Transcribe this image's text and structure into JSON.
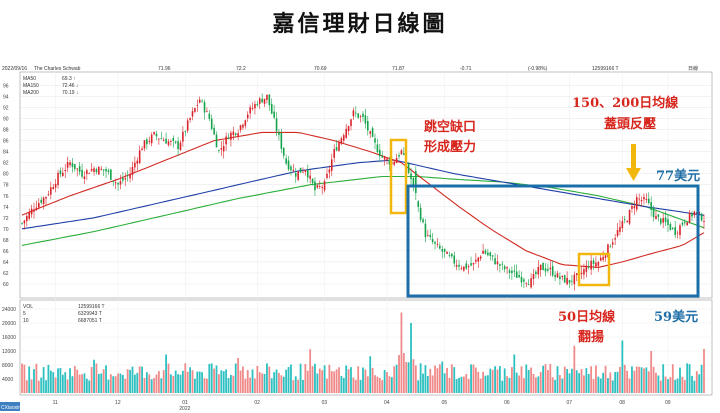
{
  "title": "嘉信理財日線圖",
  "header": {
    "date": "2022/09/16",
    "symbol": "The Charles Schwab",
    "fields": [
      "71.96",
      "72.2",
      "70.69",
      "71.87",
      "-0.71",
      "(-0.98%)",
      "12599166 T",
      "日線"
    ],
    "index_markers": [
      "開",
      "高",
      "低",
      "收",
      "量"
    ]
  },
  "ma_legend": [
    {
      "label": "MA50",
      "value": "69.3 ↑",
      "color": "#d12a22"
    },
    {
      "label": "MA150",
      "value": "72.46 ↓",
      "color": "#1f3fa8"
    },
    {
      "label": "MA200",
      "value": "70.19 ↓",
      "color": "#2bae3a"
    }
  ],
  "vol_legend": [
    {
      "label": "VOL",
      "value": "12599166 T"
    },
    {
      "label": "5",
      "value": "6329943 T"
    },
    {
      "label": "10",
      "value": "6687051 T"
    }
  ],
  "status_tag": "CXiaoxin",
  "annotations": {
    "gap": [
      "跳空缺口",
      "形成壓力"
    ],
    "ma_resist": [
      "150、200日均線",
      "蓋頭反壓"
    ],
    "price77": "77美元",
    "ma50_up": [
      "50日均線",
      "翻揚"
    ],
    "price59": "59美元"
  },
  "colors": {
    "up": "#d9232a",
    "down": "#14a34a",
    "vol_up": "#f08a8a",
    "vol_down": "#2cc0c0",
    "ma50": "#d12a22",
    "ma150": "#1f3fa8",
    "ma200": "#2bae3a",
    "box": "#1b6fa8",
    "highlight": "#f2b70f"
  },
  "chart_data": {
    "type": "candlestick",
    "yticks": [
      60,
      62,
      64,
      66,
      68,
      70,
      72,
      74,
      76,
      78,
      80,
      82,
      84,
      86,
      88,
      90,
      92,
      94,
      96
    ],
    "vol_ticks": [
      4000,
      8000,
      12000,
      16000,
      20000,
      24000
    ],
    "x_labels": [
      "11",
      "12",
      "01",
      "02",
      "03",
      "04",
      "05",
      "06",
      "07",
      "08",
      "09"
    ],
    "x_year": "2022",
    "ylim": [
      58,
      97
    ],
    "price_path": [
      [
        0,
        71
      ],
      [
        5,
        74
      ],
      [
        10,
        76
      ],
      [
        15,
        79.5
      ],
      [
        20,
        82
      ],
      [
        25,
        80
      ],
      [
        30,
        81
      ],
      [
        35,
        80.5
      ],
      [
        40,
        78
      ],
      [
        45,
        80
      ],
      [
        50,
        85
      ],
      [
        55,
        87
      ],
      [
        60,
        86
      ],
      [
        65,
        85
      ],
      [
        70,
        90
      ],
      [
        74,
        93.5
      ],
      [
        78,
        90
      ],
      [
        82,
        84
      ],
      [
        86,
        87
      ],
      [
        90,
        88
      ],
      [
        94,
        91
      ],
      [
        98,
        93
      ],
      [
        102,
        94
      ],
      [
        106,
        88
      ],
      [
        110,
        82
      ],
      [
        114,
        80
      ],
      [
        118,
        81
      ],
      [
        122,
        77
      ],
      [
        126,
        78
      ],
      [
        130,
        84
      ],
      [
        134,
        87.5
      ],
      [
        138,
        91
      ],
      [
        142,
        90
      ],
      [
        146,
        86
      ],
      [
        150,
        83
      ],
      [
        154,
        82
      ],
      [
        158,
        84
      ],
      [
        162,
        79
      ],
      [
        165,
        74
      ],
      [
        168,
        69
      ],
      [
        172,
        67
      ],
      [
        176,
        65.5
      ],
      [
        180,
        64
      ],
      [
        184,
        63
      ],
      [
        188,
        63.5
      ],
      [
        192,
        66
      ],
      [
        196,
        64.5
      ],
      [
        200,
        63
      ],
      [
        204,
        62
      ],
      [
        208,
        61
      ],
      [
        212,
        60.5
      ],
      [
        216,
        63
      ],
      [
        220,
        62.5
      ],
      [
        224,
        61
      ],
      [
        228,
        60.5
      ],
      [
        232,
        61.5
      ],
      [
        236,
        63.5
      ],
      [
        240,
        64
      ],
      [
        244,
        66.5
      ],
      [
        248,
        69.5
      ],
      [
        252,
        72
      ],
      [
        256,
        75.5
      ],
      [
        260,
        75
      ],
      [
        264,
        72
      ],
      [
        268,
        71
      ],
      [
        272,
        69.5
      ],
      [
        276,
        71.5
      ],
      [
        280,
        73
      ],
      [
        284,
        71.87
      ]
    ],
    "ma50": [
      [
        0,
        72.5
      ],
      [
        20,
        76
      ],
      [
        40,
        79
      ],
      [
        60,
        82.5
      ],
      [
        80,
        86
      ],
      [
        100,
        87.5
      ],
      [
        115,
        87.5
      ],
      [
        130,
        86
      ],
      [
        145,
        84
      ],
      [
        158,
        82
      ],
      [
        170,
        78
      ],
      [
        182,
        74
      ],
      [
        195,
        70
      ],
      [
        210,
        66
      ],
      [
        225,
        63.5
      ],
      [
        240,
        63
      ],
      [
        250,
        64
      ],
      [
        262,
        65.5
      ],
      [
        275,
        67
      ],
      [
        284,
        69.3
      ]
    ],
    "ma150": [
      [
        0,
        70
      ],
      [
        30,
        72
      ],
      [
        60,
        75
      ],
      [
        90,
        78
      ],
      [
        115,
        80.5
      ],
      [
        140,
        82
      ],
      [
        155,
        82.5
      ],
      [
        165,
        81.5
      ],
      [
        180,
        80
      ],
      [
        200,
        78.5
      ],
      [
        220,
        77
      ],
      [
        240,
        75.5
      ],
      [
        260,
        74
      ],
      [
        284,
        72.46
      ]
    ],
    "ma200": [
      [
        0,
        67
      ],
      [
        30,
        69.5
      ],
      [
        60,
        72.5
      ],
      [
        90,
        75.5
      ],
      [
        120,
        78
      ],
      [
        150,
        79.5
      ],
      [
        165,
        79.5
      ],
      [
        180,
        79
      ],
      [
        200,
        78.5
      ],
      [
        220,
        77.5
      ],
      [
        240,
        76
      ],
      [
        260,
        74
      ],
      [
        284,
        70.19
      ]
    ],
    "volume_spikes": [
      [
        30,
        9500
      ],
      [
        60,
        11000
      ],
      [
        90,
        10000
      ],
      [
        120,
        12500
      ],
      [
        145,
        10500
      ],
      [
        158,
        23000
      ],
      [
        162,
        20000
      ],
      [
        175,
        9000
      ],
      [
        205,
        11000
      ],
      [
        230,
        13500
      ],
      [
        250,
        15000
      ],
      [
        262,
        12000
      ],
      [
        284,
        12599
      ]
    ]
  }
}
